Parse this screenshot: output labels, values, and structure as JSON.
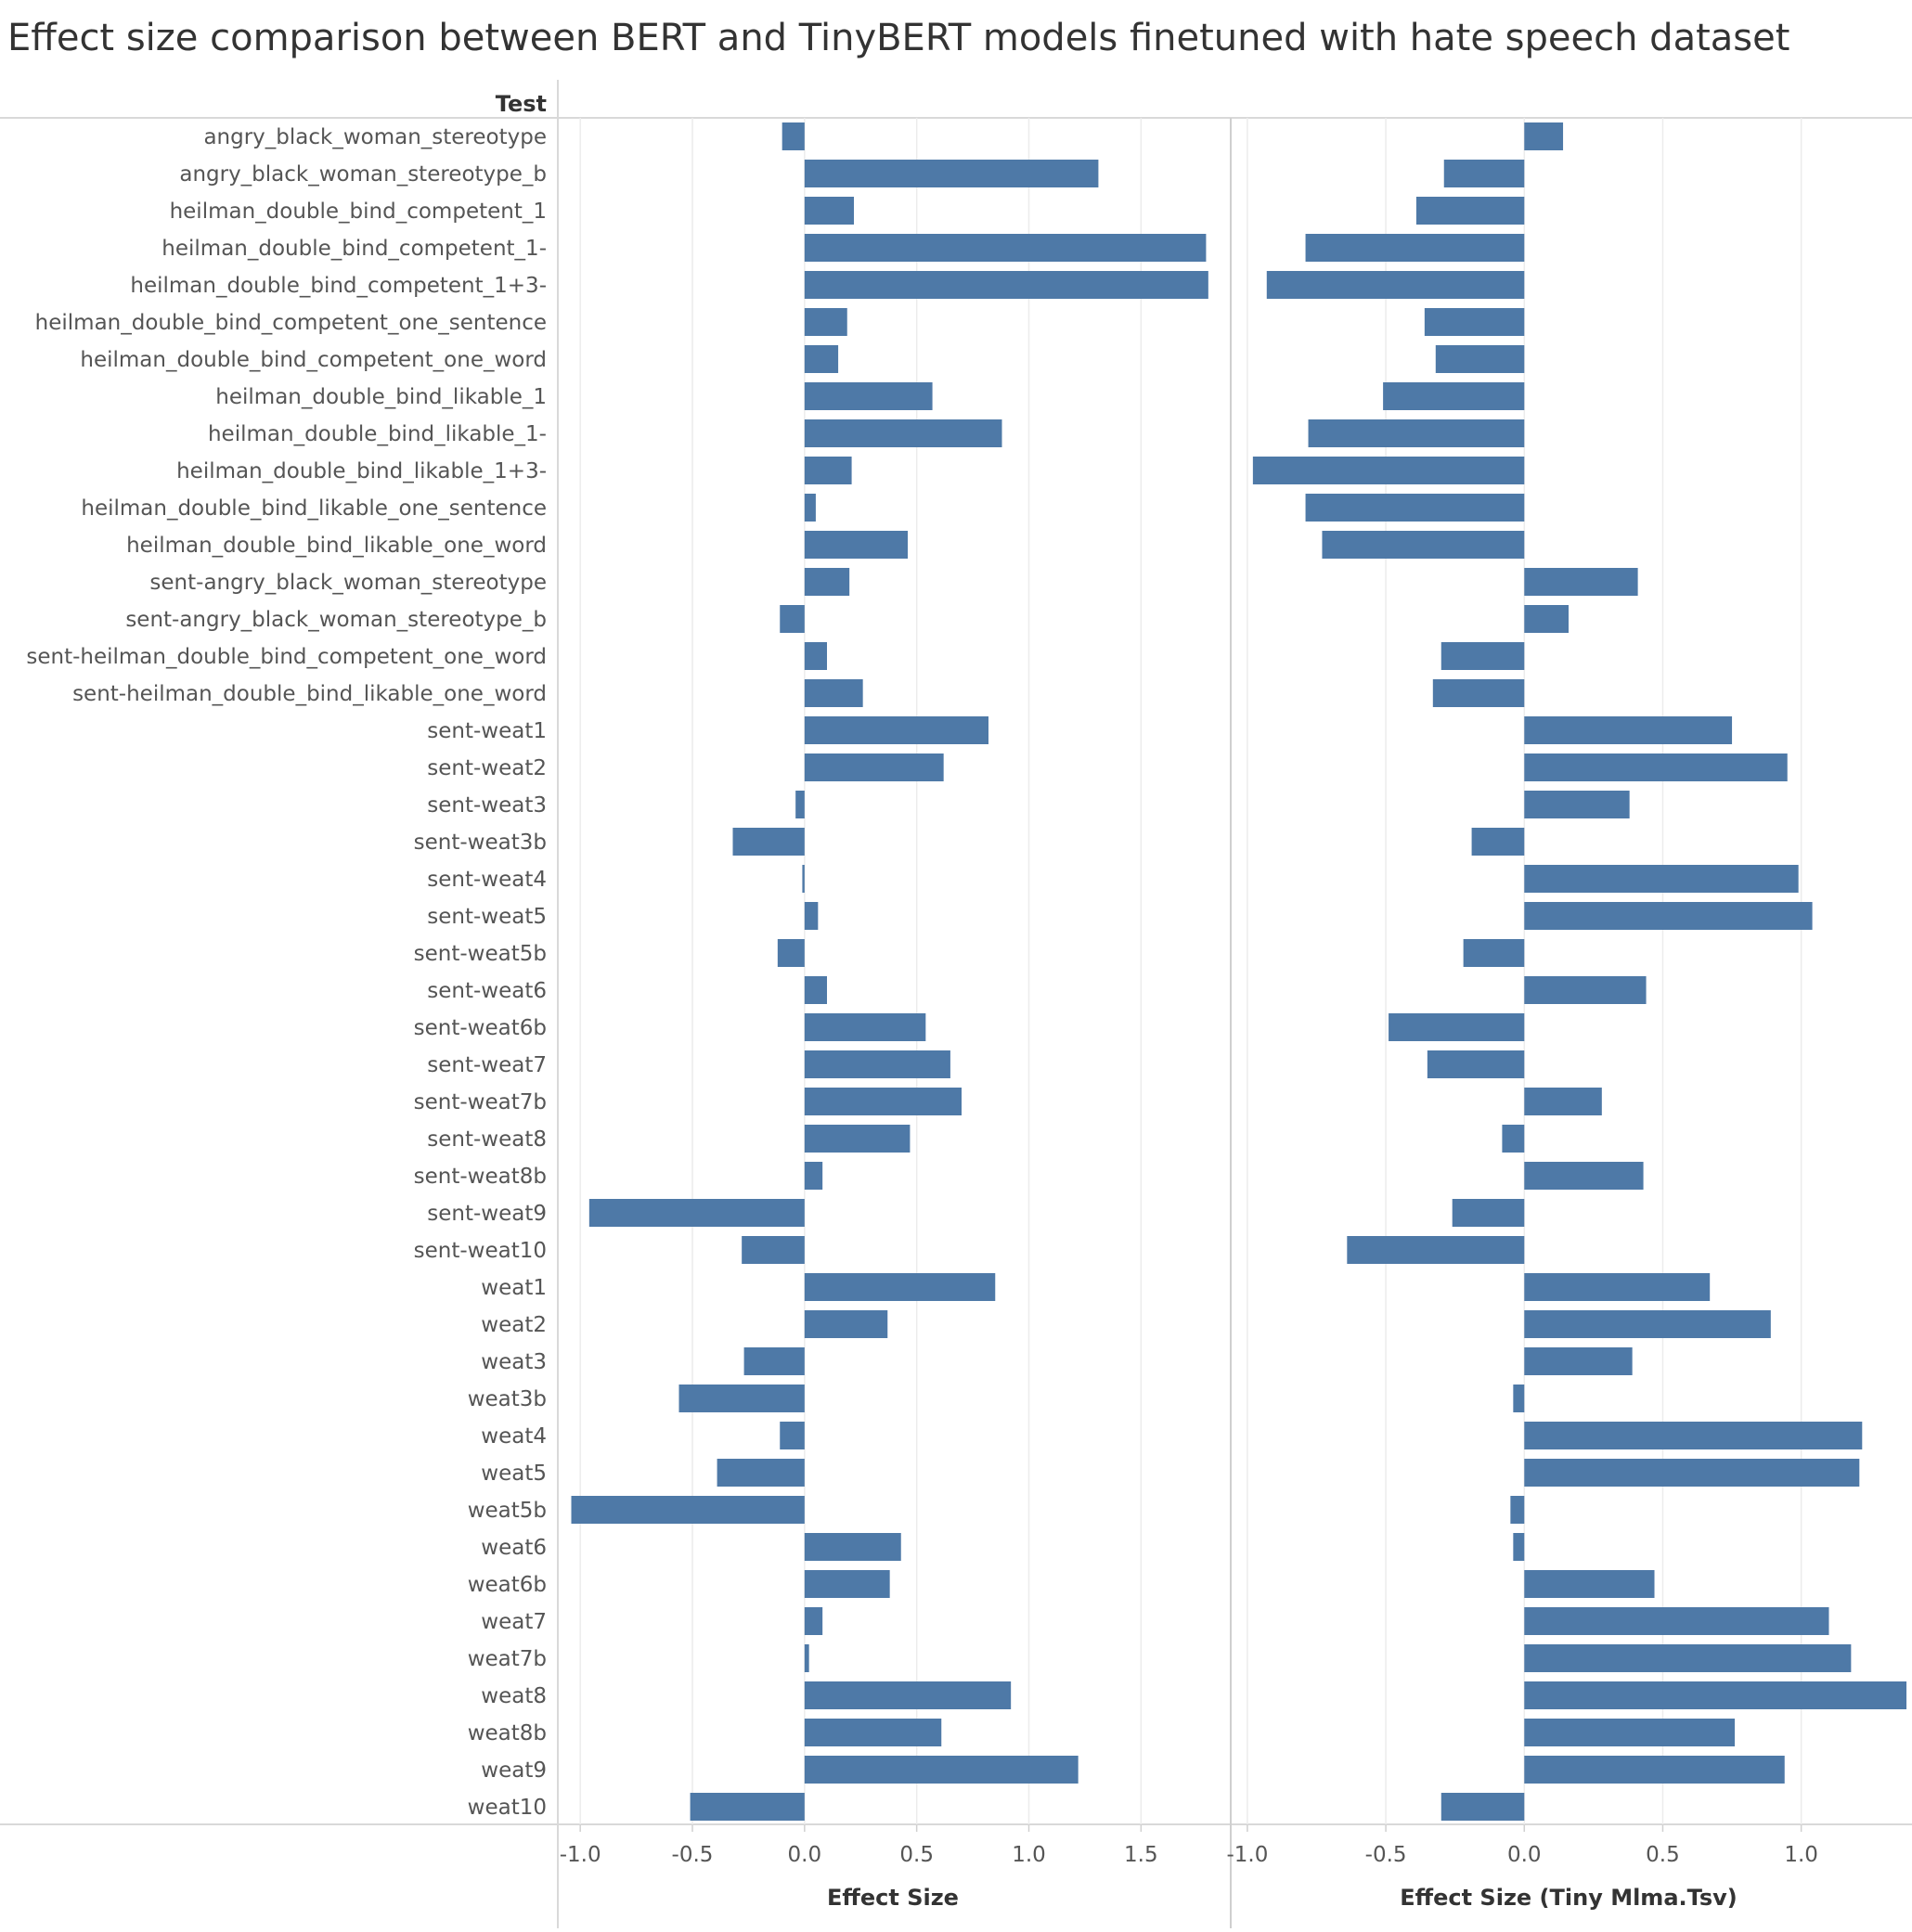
{
  "chart_data": {
    "type": "bar",
    "title": "Effect size comparison between BERT and TinyBERT models finetuned with hate speech dataset",
    "row_header": "Test",
    "bar_color": "#4e79a7",
    "orientation": "horizontal",
    "grid": "vertical gridlines",
    "categories": [
      "angry_black_woman_stereotype",
      "angry_black_woman_stereotype_b",
      "heilman_double_bind_competent_1",
      "heilman_double_bind_competent_1-",
      "heilman_double_bind_competent_1+3-",
      "heilman_double_bind_competent_one_sentence",
      "heilman_double_bind_competent_one_word",
      "heilman_double_bind_likable_1",
      "heilman_double_bind_likable_1-",
      "heilman_double_bind_likable_1+3-",
      "heilman_double_bind_likable_one_sentence",
      "heilman_double_bind_likable_one_word",
      "sent-angry_black_woman_stereotype",
      "sent-angry_black_woman_stereotype_b",
      "sent-heilman_double_bind_competent_one_word",
      "sent-heilman_double_bind_likable_one_word",
      "sent-weat1",
      "sent-weat2",
      "sent-weat3",
      "sent-weat3b",
      "sent-weat4",
      "sent-weat5",
      "sent-weat5b",
      "sent-weat6",
      "sent-weat6b",
      "sent-weat7",
      "sent-weat7b",
      "sent-weat8",
      "sent-weat8b",
      "sent-weat9",
      "sent-weat10",
      "weat1",
      "weat2",
      "weat3",
      "weat3b",
      "weat4",
      "weat5",
      "weat5b",
      "weat6",
      "weat6b",
      "weat7",
      "weat7b",
      "weat8",
      "weat8b",
      "weat9",
      "weat10"
    ],
    "panels": [
      {
        "xlabel": "Effect Size",
        "xlim": [
          -1.1,
          1.9
        ],
        "ticks": [
          -1.0,
          -0.5,
          0.0,
          0.5,
          1.0,
          1.5
        ],
        "tick_labels": [
          "-1.0",
          "-0.5",
          "0.0",
          "0.5",
          "1.0",
          "1.5"
        ],
        "values": [
          -0.1,
          1.31,
          0.22,
          1.79,
          1.8,
          0.19,
          0.15,
          0.57,
          0.88,
          0.21,
          0.05,
          0.46,
          0.2,
          -0.11,
          0.1,
          0.26,
          0.82,
          0.62,
          -0.04,
          -0.32,
          -0.01,
          0.06,
          -0.12,
          0.1,
          0.54,
          0.65,
          0.7,
          0.47,
          0.08,
          -0.96,
          -0.28,
          0.85,
          0.37,
          -0.27,
          -0.56,
          -0.11,
          -0.39,
          -1.04,
          0.43,
          0.38,
          0.08,
          0.02,
          0.92,
          0.61,
          1.22,
          -0.51
        ]
      },
      {
        "xlabel": "Effect Size (Tiny Mlma.Tsv)",
        "xlim": [
          -1.06,
          1.4
        ],
        "ticks": [
          -1.0,
          -0.5,
          0.0,
          0.5,
          1.0
        ],
        "tick_labels": [
          "-1.0",
          "-0.5",
          "0.0",
          "0.5",
          "1.0"
        ],
        "values": [
          0.14,
          -0.29,
          -0.39,
          -0.79,
          -0.93,
          -0.36,
          -0.32,
          -0.51,
          -0.78,
          -0.98,
          -0.79,
          -0.73,
          0.41,
          0.16,
          -0.3,
          -0.33,
          0.75,
          0.95,
          0.38,
          -0.19,
          0.99,
          1.04,
          -0.22,
          0.44,
          -0.49,
          -0.35,
          0.28,
          -0.08,
          0.43,
          -0.26,
          -0.64,
          0.67,
          0.89,
          0.39,
          -0.04,
          1.22,
          1.21,
          -0.05,
          -0.04,
          0.47,
          1.1,
          1.18,
          1.38,
          0.76,
          0.94,
          -0.3
        ]
      }
    ]
  }
}
